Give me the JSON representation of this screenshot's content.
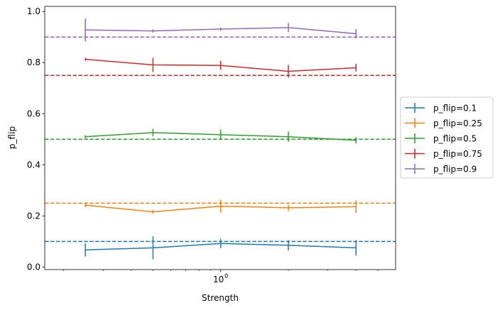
{
  "chart_data": {
    "type": "line",
    "title": "",
    "xlabel": "Strength",
    "ylabel": "p_flip",
    "xscale": "log",
    "x": [
      0.25,
      0.5,
      1,
      2,
      4
    ],
    "xlim": [
      0.165,
      6.0
    ],
    "ylim": [
      -0.01,
      1.02
    ],
    "x_major_ticks": [
      {
        "value": 1,
        "label": "10",
        "exp": "0"
      }
    ],
    "x_minor_ticks": [
      0.2,
      0.3,
      0.4,
      0.5,
      0.6,
      0.7,
      0.8,
      0.9,
      2,
      3,
      4,
      5
    ],
    "y_ticks": [
      {
        "value": 0.0,
        "label": "0.0"
      },
      {
        "value": 0.2,
        "label": "0.2"
      },
      {
        "value": 0.4,
        "label": "0.4"
      },
      {
        "value": 0.6,
        "label": "0.6"
      },
      {
        "value": 0.8,
        "label": "0.8"
      },
      {
        "value": 1.0,
        "label": "1.0"
      }
    ],
    "legend_position": "outside-right",
    "series": [
      {
        "name": "p_flip=0.1",
        "color": "#1f77b4",
        "target": 0.1,
        "values": [
          0.067,
          0.075,
          0.092,
          0.085,
          0.075
        ],
        "errors": [
          0.025,
          0.045,
          0.018,
          0.02,
          0.03
        ]
      },
      {
        "name": "p_flip=0.25",
        "color": "#ff7f0e",
        "target": 0.25,
        "values": [
          0.242,
          0.216,
          0.238,
          0.232,
          0.236
        ],
        "errors": [
          0.008,
          0.008,
          0.025,
          0.012,
          0.025
        ]
      },
      {
        "name": "p_flip=0.5",
        "color": "#2ca02c",
        "target": 0.5,
        "values": [
          0.51,
          0.526,
          0.518,
          0.51,
          0.496
        ],
        "errors": [
          0.006,
          0.015,
          0.02,
          0.02,
          0.012
        ]
      },
      {
        "name": "p_flip=0.75",
        "color": "#d62728",
        "target": 0.75,
        "values": [
          0.813,
          0.791,
          0.789,
          0.766,
          0.78
        ],
        "errors": [
          0.006,
          0.028,
          0.018,
          0.025,
          0.015
        ]
      },
      {
        "name": "p_flip=0.9",
        "color": "#9467bd",
        "target": 0.9,
        "values": [
          0.928,
          0.924,
          0.931,
          0.937,
          0.913
        ],
        "errors": [
          0.045,
          0.006,
          0.006,
          0.018,
          0.018
        ]
      }
    ]
  }
}
